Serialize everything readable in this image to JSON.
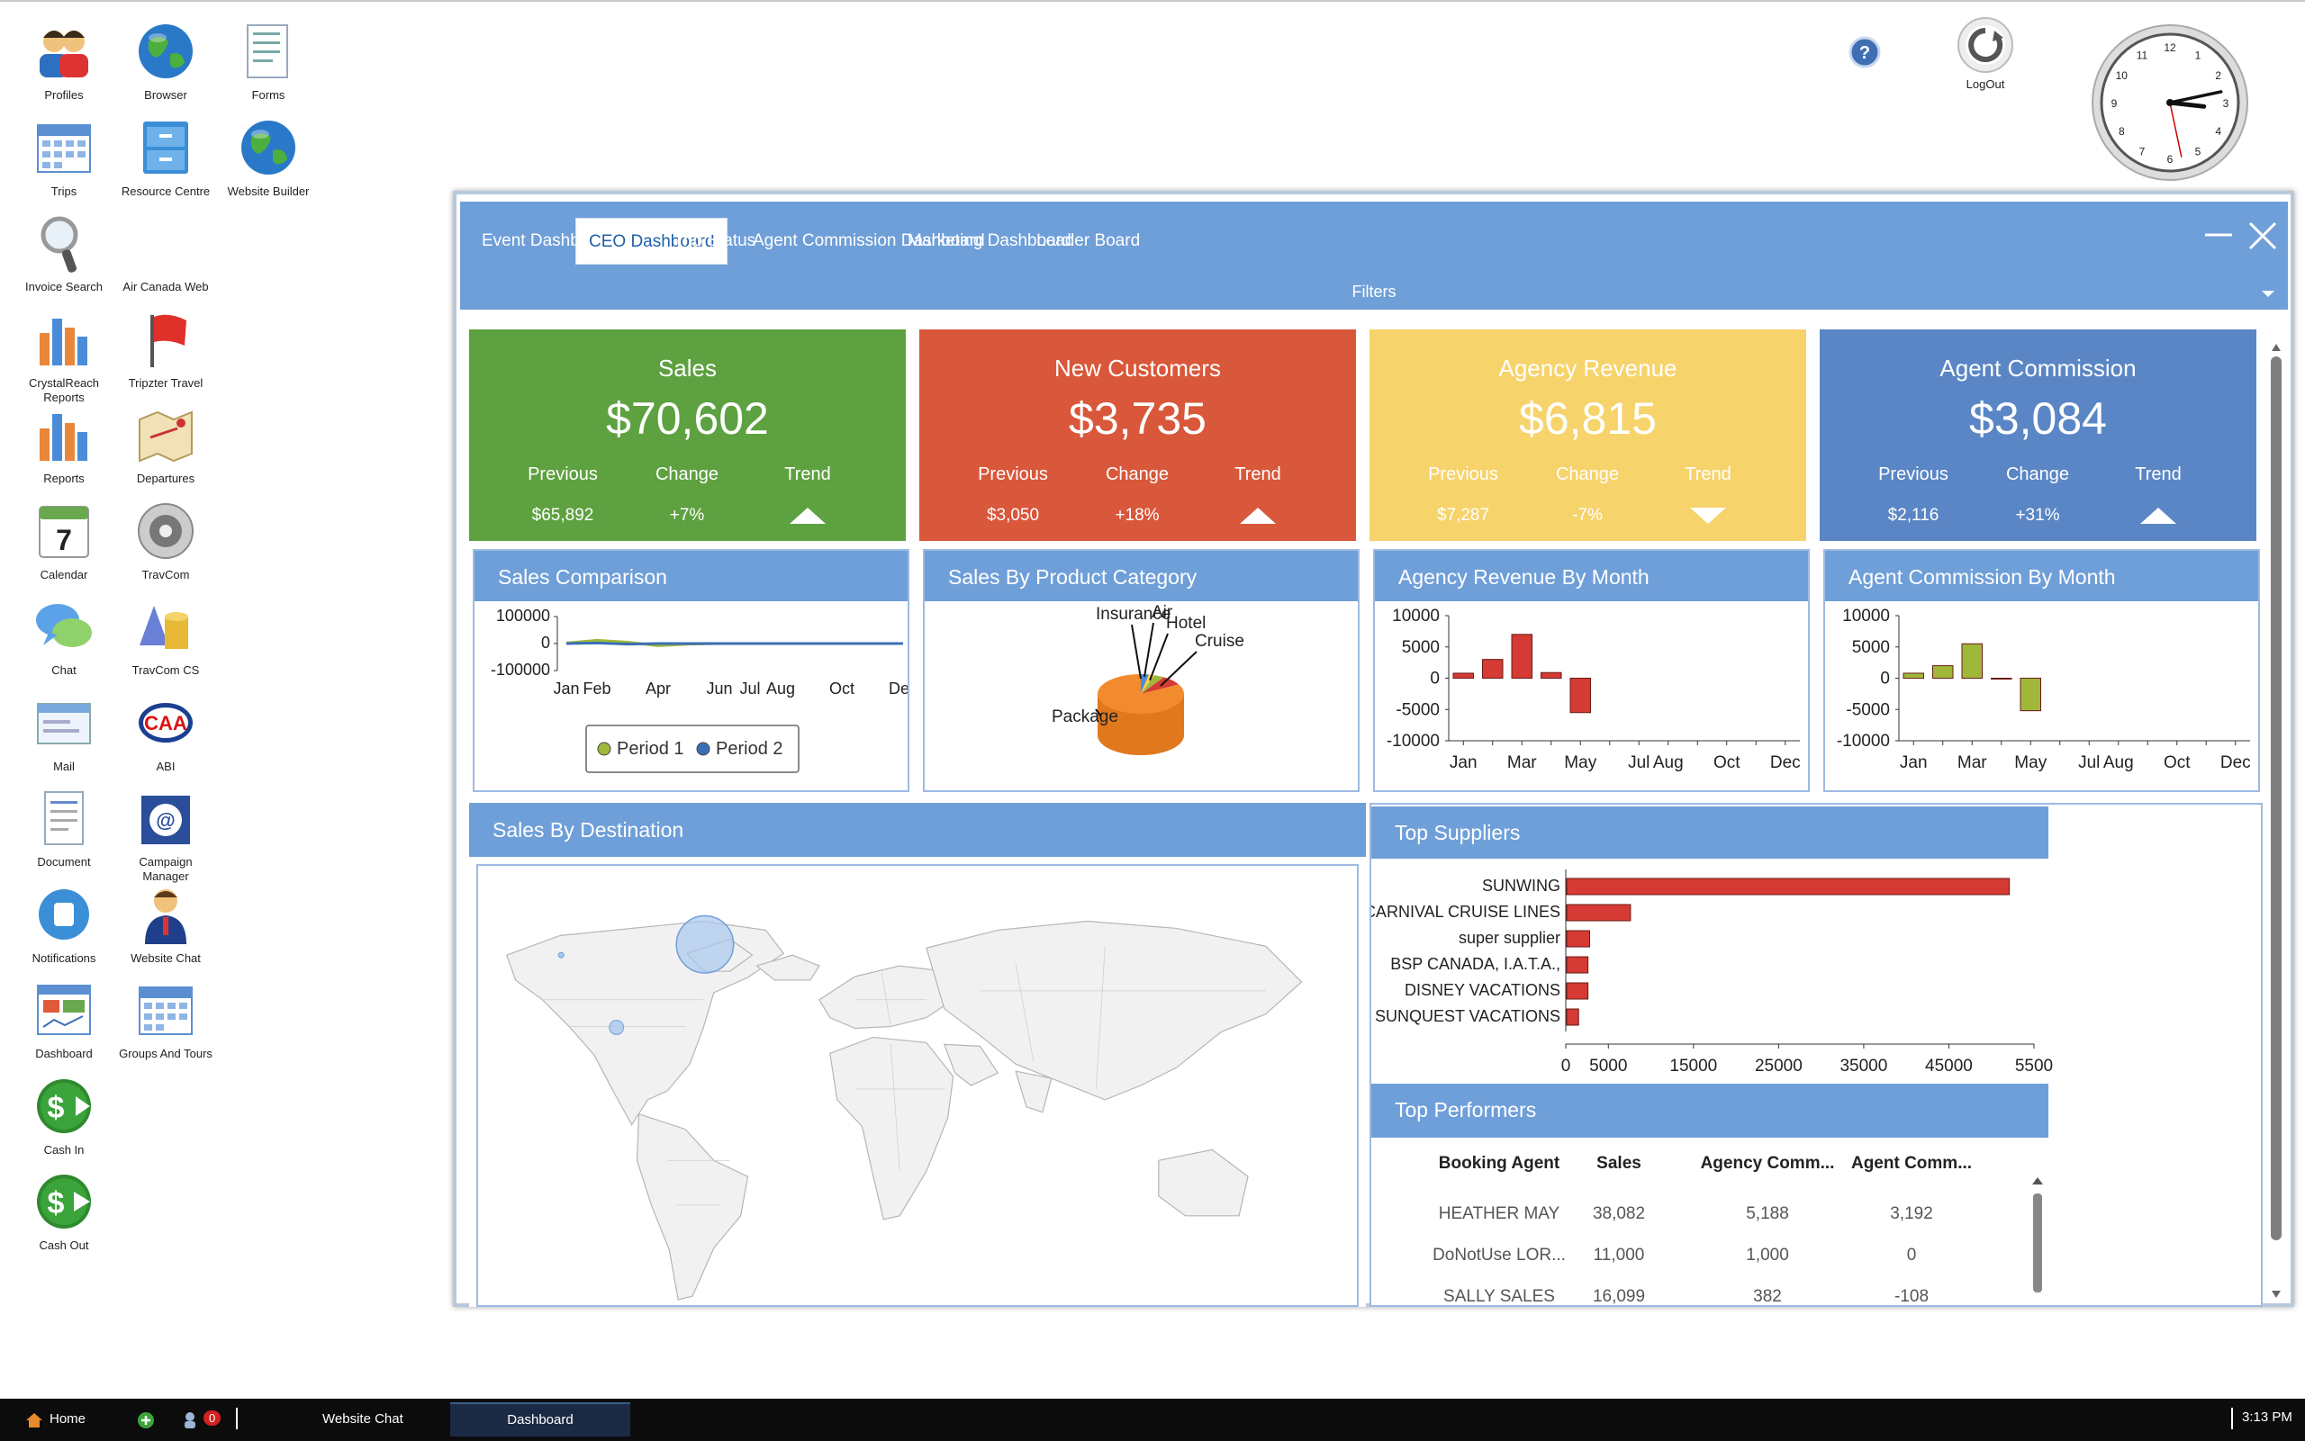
{
  "desktop_icons": [
    {
      "label": "Profiles",
      "icon": "profiles-icon"
    },
    {
      "label": "Browser",
      "icon": "globe-icon"
    },
    {
      "label": "Forms",
      "icon": "forms-icon"
    },
    {
      "label": "Trips",
      "icon": "calendar-grid-icon"
    },
    {
      "label": "Resource Centre",
      "icon": "cabinet-icon"
    },
    {
      "label": "Website Builder",
      "icon": "globe-icon"
    },
    {
      "label": "Invoice Search",
      "icon": "magnifier-icon"
    },
    {
      "label": "Air Canada Web",
      "icon": "blank-icon"
    },
    {
      "label": "CrystalReach Reports",
      "icon": "bar-chart-icon"
    },
    {
      "label": "Tripzter Travel",
      "icon": "flag-icon"
    },
    {
      "label": "Reports",
      "icon": "bar-chart-icon"
    },
    {
      "label": "Departures",
      "icon": "map-icon"
    },
    {
      "label": "Calendar",
      "icon": "calendar-icon"
    },
    {
      "label": "TravCom",
      "icon": "disc-icon"
    },
    {
      "label": "Chat",
      "icon": "chat-icon"
    },
    {
      "label": "TravCom CS",
      "icon": "shapes-icon"
    },
    {
      "label": "Mail",
      "icon": "mail-icon"
    },
    {
      "label": "ABI",
      "icon": "caa-icon"
    },
    {
      "label": "Document",
      "icon": "document-icon"
    },
    {
      "label": "Campaign Manager",
      "icon": "campaign-icon"
    },
    {
      "label": "Notifications",
      "icon": "notification-icon"
    },
    {
      "label": "Website Chat",
      "icon": "agent-icon"
    },
    {
      "label": "Dashboard",
      "icon": "dashboard-icon"
    },
    {
      "label": "Groups And Tours",
      "icon": "calendar-grid-icon"
    },
    {
      "label": "Cash In",
      "icon": "cash-in-icon"
    },
    {
      "label": "Cash Out",
      "icon": "cash-out-icon"
    }
  ],
  "top_right": {
    "help": "?",
    "logout_label": "LogOut",
    "clock": {
      "hour": 3,
      "minute": 13,
      "second": 28
    }
  },
  "tabs": [
    "Event Dashboard",
    "CEO Dashboard",
    "Trip Status",
    "Agent Commission Dashboard",
    "Marketing Dashboard",
    "Leader Board"
  ],
  "active_tab": "CEO Dashboard",
  "filters_label": "Filters",
  "kpis": [
    {
      "title": "Sales",
      "value": "$70,602",
      "previous_label": "Previous",
      "change_label": "Change",
      "trend_label": "Trend",
      "previous": "$65,892",
      "change": "+7%",
      "trend": "up",
      "color": "#5ea140"
    },
    {
      "title": "New Customers",
      "value": "$3,735",
      "previous_label": "Previous",
      "change_label": "Change",
      "trend_label": "Trend",
      "previous": "$3,050",
      "change": "+18%",
      "trend": "up",
      "color": "#d9573a"
    },
    {
      "title": "Agency Revenue",
      "value": "$6,815",
      "previous_label": "Previous",
      "change_label": "Change",
      "trend_label": "Trend",
      "previous": "$7,287",
      "change": "-7%",
      "trend": "down",
      "color": "#f7d36b"
    },
    {
      "title": "Agent Commission",
      "value": "$3,084",
      "previous_label": "Previous",
      "change_label": "Change",
      "trend_label": "Trend",
      "previous": "$2,116",
      "change": "+31%",
      "trend": "up",
      "color": "#5a86c5"
    }
  ],
  "panels": {
    "sales_comparison": "Sales Comparison",
    "sales_by_product": "Sales By Product Category",
    "agency_rev_month": "Agency Revenue By Month",
    "agent_comm_month": "Agent Commission By Month",
    "sales_by_destination": "Sales By Destination",
    "top_suppliers": "Top Suppliers",
    "top_performers": "Top Performers"
  },
  "chart_data": [
    {
      "type": "line",
      "yticks": [
        "100000",
        "0",
        "-100000"
      ],
      "xticks": [
        "Jan",
        "Feb",
        "Apr",
        "Jun",
        "Jul",
        "Aug",
        "Oct",
        "Dec"
      ],
      "ylim": [
        -100000,
        100000
      ],
      "series": [
        {
          "name": "Period 1",
          "color": "#9fb83a",
          "values": [
            2000,
            12000,
            5000,
            -8000,
            -2000,
            0,
            0,
            0,
            0,
            0,
            0,
            0
          ]
        },
        {
          "name": "Period 2",
          "color": "#3b6fb5",
          "values": [
            0,
            2000,
            -2000,
            0,
            0,
            0,
            0,
            0,
            0,
            0,
            0,
            0
          ]
        }
      ]
    },
    {
      "type": "pie",
      "categories": [
        "Insurance",
        "Air",
        "Hotel",
        "Cruise",
        "Package"
      ],
      "values": [
        3,
        2,
        4,
        8,
        83
      ]
    },
    {
      "type": "bar",
      "yticks": [
        "10000",
        "5000",
        "0",
        "-5000",
        "-10000"
      ],
      "xticks": [
        "Jan",
        "Mar",
        "May",
        "Jul",
        "Aug",
        "Oct",
        "Dec"
      ],
      "ylim": [
        -10000,
        10000
      ],
      "color": "#d53a34",
      "values": [
        800,
        3000,
        7000,
        900,
        -5500
      ]
    },
    {
      "type": "bar",
      "yticks": [
        "10000",
        "5000",
        "0",
        "-5000",
        "-10000"
      ],
      "xticks": [
        "Jan",
        "Mar",
        "May",
        "Jul",
        "Aug",
        "Oct",
        "Dec"
      ],
      "ylim": [
        -10000,
        10000
      ],
      "color": "#9fb83a",
      "values": [
        800,
        2000,
        5500,
        0,
        -5200
      ]
    },
    {
      "type": "bar",
      "orientation": "horizontal",
      "categories": [
        "SUNWING",
        "CARNIVAL CRUISE LINES",
        "super supplier",
        "BSP CANADA,  I.A.T.A.,",
        "DISNEY VACATIONS",
        "SUNQUEST VACATIONS"
      ],
      "values": [
        52000,
        7500,
        2700,
        2500,
        2500,
        1400
      ],
      "xticks": [
        "0",
        "5000",
        "15000",
        "25000",
        "35000",
        "45000",
        "5500"
      ],
      "xlim": [
        0,
        55000
      ],
      "color": "#d53a34"
    }
  ],
  "performers": {
    "columns": [
      "Booking Agent",
      "Sales",
      "Agency Comm...",
      "Agent Comm..."
    ],
    "rows": [
      [
        "HEATHER MAY",
        "38,082",
        "5,188",
        "3,192"
      ],
      [
        "DoNotUse LOR...",
        "11,000",
        "1,000",
        "0"
      ],
      [
        "SALLY SALES",
        "16,099",
        "382",
        "-108"
      ]
    ]
  },
  "taskbar": {
    "home": "Home",
    "badge": "0",
    "items": [
      "Website Chat",
      "Dashboard"
    ],
    "time": "3:13 PM"
  }
}
